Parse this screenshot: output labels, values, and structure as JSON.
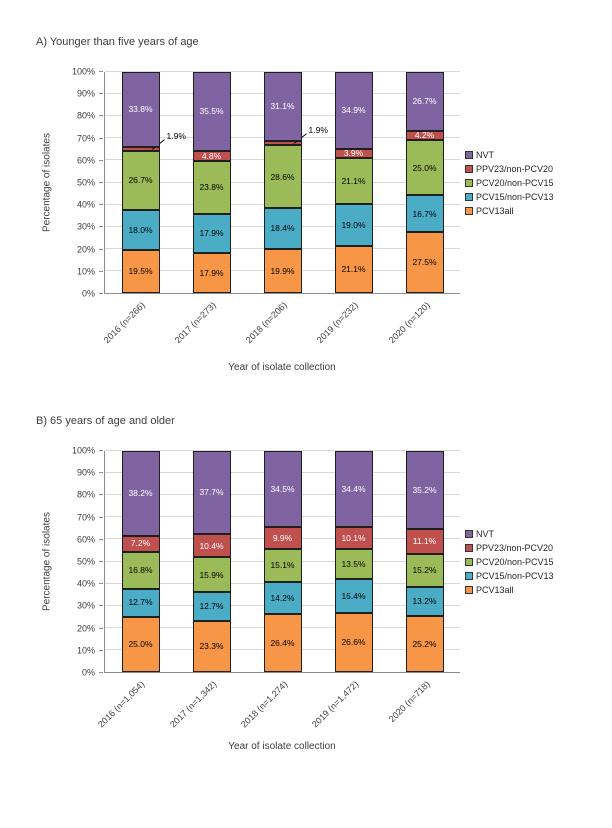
{
  "chart_data": [
    {
      "type": "bar",
      "stacked": true,
      "panel_title": "A) Younger than five years of age",
      "xlabel": "Year of isolate collection",
      "ylabel": "Percentage of isolates",
      "ylim": [
        0,
        100
      ],
      "ytick_step": 10,
      "ytick_suffix": "%",
      "grid": true,
      "legend_position": "right",
      "categories": [
        "2016 (n=266)",
        "2017 (n=273)",
        "2018 (n=206)",
        "2019 (n=232)",
        "2020 (n=120)"
      ],
      "series": [
        {
          "name": "PCV13all",
          "color": "#F79646",
          "label_color": "#000000",
          "values": [
            19.5,
            17.9,
            19.9,
            21.1,
            27.5
          ]
        },
        {
          "name": "PCV15/non-PCV13",
          "color": "#4BACC6",
          "label_color": "#000000",
          "values": [
            18.0,
            17.9,
            18.4,
            19.0,
            16.7
          ]
        },
        {
          "name": "PCV20/non-PCV15",
          "color": "#9BBB59",
          "label_color": "#000000",
          "values": [
            26.7,
            23.8,
            28.6,
            21.1,
            25.0
          ]
        },
        {
          "name": "PPV23/non-PCV20",
          "color": "#C0504D",
          "label_color": "#ffffff",
          "values": [
            1.9,
            4.8,
            1.9,
            3.9,
            4.2
          ],
          "callouts": [
            true,
            false,
            true,
            false,
            false
          ]
        },
        {
          "name": "NVT",
          "color": "#8064A2",
          "label_color": "#ffffff",
          "values": [
            33.8,
            35.5,
            31.1,
            34.9,
            26.7
          ]
        }
      ],
      "legend": [
        "NVT",
        "PPV23/non-PCV20",
        "PCV20/non-PCV15",
        "PCV15/non-PCV13",
        "PCV13all"
      ]
    },
    {
      "type": "bar",
      "stacked": true,
      "panel_title": "B) 65 years of age and older",
      "xlabel": "Year of isolate collection",
      "ylabel": "Percentage of isolates",
      "ylim": [
        0,
        100
      ],
      "ytick_step": 10,
      "ytick_suffix": "%",
      "grid": true,
      "legend_position": "right",
      "categories": [
        "2016 (n=1,054)",
        "2017 (n=1,342)",
        "2018 (n=1,274)",
        "2019 (n=1,472)",
        "2020 (n=718)"
      ],
      "series": [
        {
          "name": "PCV13all",
          "color": "#F79646",
          "label_color": "#000000",
          "values": [
            25.0,
            23.3,
            26.4,
            26.6,
            25.2
          ]
        },
        {
          "name": "PCV15/non-PCV13",
          "color": "#4BACC6",
          "label_color": "#000000",
          "values": [
            12.7,
            12.7,
            14.2,
            15.4,
            13.2
          ]
        },
        {
          "name": "PCV20/non-PCV15",
          "color": "#9BBB59",
          "label_color": "#000000",
          "values": [
            16.8,
            15.9,
            15.1,
            13.5,
            15.2
          ]
        },
        {
          "name": "PPV23/non-PCV20",
          "color": "#C0504D",
          "label_color": "#ffffff",
          "values": [
            7.2,
            10.4,
            9.9,
            10.1,
            11.1
          ]
        },
        {
          "name": "NVT",
          "color": "#8064A2",
          "label_color": "#ffffff",
          "values": [
            38.2,
            37.7,
            34.5,
            34.4,
            35.2
          ]
        }
      ],
      "legend": [
        "NVT",
        "PPV23/non-PCV20",
        "PCV20/non-PCV15",
        "PCV15/non-PCV13",
        "PCV13all"
      ]
    }
  ]
}
